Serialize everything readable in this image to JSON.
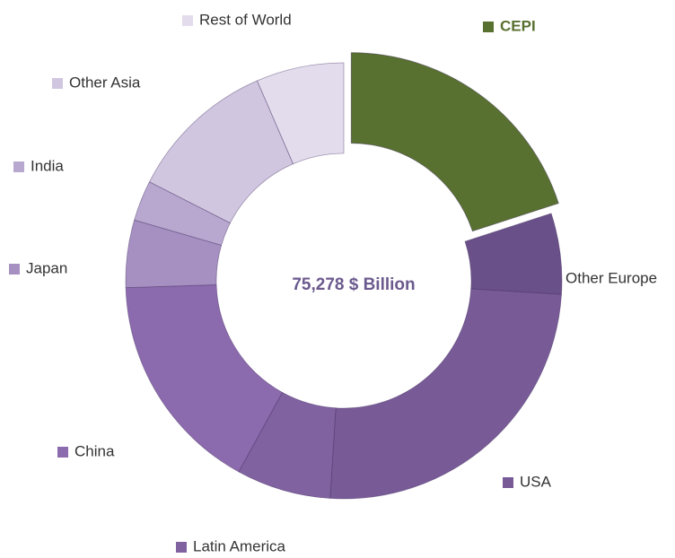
{
  "chart_data": {
    "type": "donut",
    "center_label": "75,278 $ Billion",
    "categories": [
      "CEPI",
      "Other Europe",
      "USA",
      "Latin America",
      "China",
      "Japan",
      "India",
      "Other Asia",
      "Rest of World"
    ],
    "values": [
      20,
      6,
      25,
      7,
      16.5,
      5,
      3,
      11,
      6.5
    ],
    "colors": [
      "#587030",
      "#6a5088",
      "#775a96",
      "#8062a0",
      "#8c6aae",
      "#a690c2",
      "#b8a8d0",
      "#d0c6e0",
      "#e3dced"
    ]
  }
}
